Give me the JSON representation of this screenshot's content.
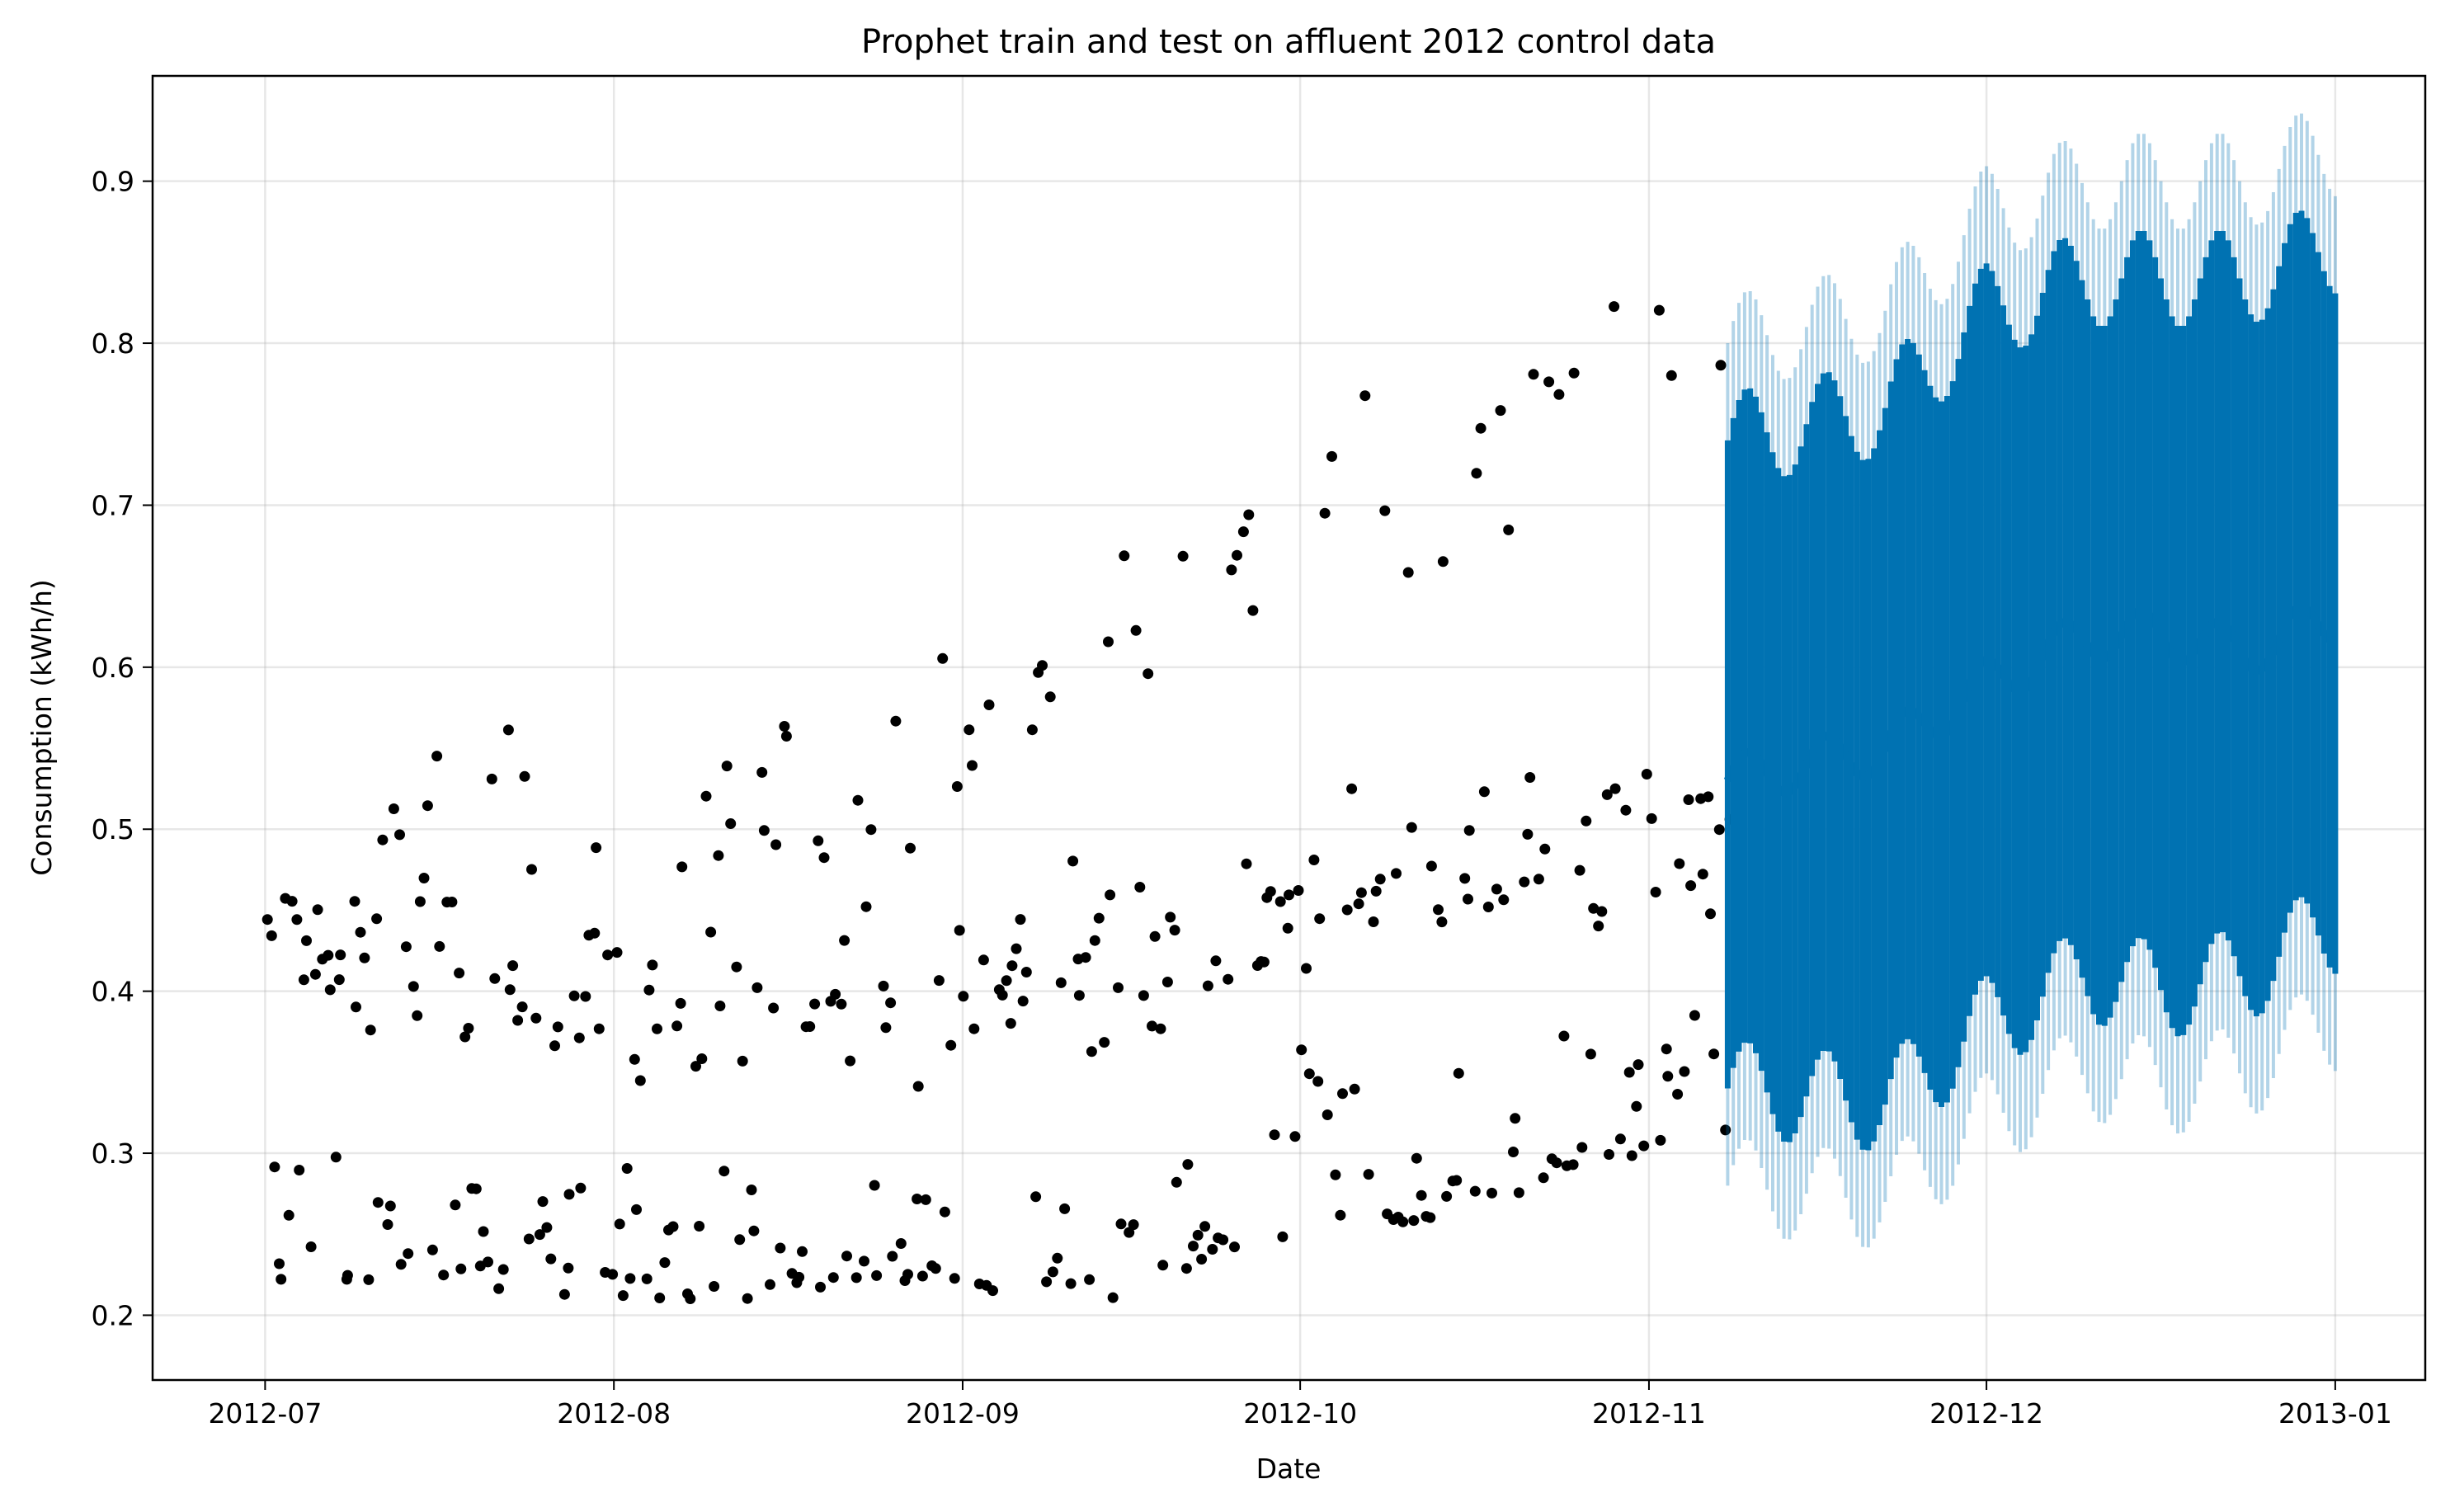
{
  "chart_data": {
    "type": "scatter",
    "title": "Prophet train and test on affluent 2012 control data",
    "xlabel": "Date",
    "ylabel": "Consumption (kWh/h)",
    "xlim": [
      "2012-06-21",
      "2013-01-09"
    ],
    "ylim": [
      0.16,
      0.965
    ],
    "x_ticks": [
      "2012-07",
      "2012-08",
      "2012-09",
      "2012-10",
      "2012-11",
      "2012-12",
      "2013-01"
    ],
    "x_tick_dates": [
      "2012-07-01",
      "2012-08-01",
      "2012-09-01",
      "2012-10-01",
      "2012-11-01",
      "2012-12-01",
      "2013-01-01"
    ],
    "y_ticks": [
      0.2,
      0.3,
      0.4,
      0.5,
      0.6,
      0.7,
      0.8,
      0.9
    ],
    "grid": true,
    "colors": {
      "observed": "#000000",
      "forecast": "#0072B2",
      "uncertainty": "#0072B2"
    },
    "series": [
      {
        "role": "observed",
        "x_range": [
          "2012-07-01",
          "2012-11-08"
        ],
        "resolution": "hourly",
        "daily_level_points": [
          [
            "2012-07-01",
            0.22,
            0.3,
            0.42
          ],
          [
            "2012-07-15",
            0.22,
            0.27,
            0.4
          ],
          [
            "2012-08-01",
            0.21,
            0.27,
            0.39
          ],
          [
            "2012-08-15",
            0.21,
            0.27,
            0.38
          ],
          [
            "2012-09-01",
            0.21,
            0.27,
            0.4
          ],
          [
            "2012-09-15",
            0.21,
            0.28,
            0.41
          ],
          [
            "2012-10-01",
            0.25,
            0.33,
            0.45
          ],
          [
            "2012-10-15",
            0.26,
            0.34,
            0.47
          ],
          [
            "2012-11-01",
            0.3,
            0.35,
            0.5
          ],
          [
            "2012-11-08",
            0.31,
            0.36,
            0.52
          ]
        ],
        "daily_peak_points": [
          [
            "2012-07-01",
            0.55
          ],
          [
            "2012-07-15",
            0.52
          ],
          [
            "2012-08-01",
            0.49
          ],
          [
            "2012-08-15",
            0.5
          ],
          [
            "2012-09-01",
            0.55
          ],
          [
            "2012-09-15",
            0.62
          ],
          [
            "2012-10-01",
            0.7
          ],
          [
            "2012-10-15",
            0.74
          ],
          [
            "2012-11-01",
            0.78
          ],
          [
            "2012-11-08",
            0.82
          ]
        ]
      },
      {
        "role": "forecast",
        "x_range": [
          "2012-11-08",
          "2013-01-01"
        ],
        "resolution": "hourly",
        "daily_low": [
          [
            "2012-11-08",
            0.34
          ],
          [
            "2012-11-22",
            0.33
          ],
          [
            "2012-12-01",
            0.38
          ],
          [
            "2012-12-10",
            0.41
          ],
          [
            "2012-12-17",
            0.4
          ],
          [
            "2012-12-24",
            0.41
          ],
          [
            "2013-01-01",
            0.44
          ]
        ],
        "daily_high": [
          [
            "2012-11-08",
            0.74
          ],
          [
            "2012-11-22",
            0.76
          ],
          [
            "2012-12-01",
            0.82
          ],
          [
            "2012-12-10",
            0.84
          ],
          [
            "2012-12-17",
            0.84
          ],
          [
            "2012-12-24",
            0.84
          ],
          [
            "2013-01-01",
            0.86
          ]
        ],
        "trend_mid": [
          [
            "2012-11-08",
            0.53
          ],
          [
            "2012-11-22",
            0.55
          ],
          [
            "2012-12-01",
            0.59
          ],
          [
            "2012-12-10",
            0.62
          ],
          [
            "2012-12-17",
            0.62
          ],
          [
            "2012-12-24",
            0.61
          ],
          [
            "2013-01-01",
            0.63
          ]
        ],
        "uncertainty_margin": 0.06
      }
    ]
  }
}
